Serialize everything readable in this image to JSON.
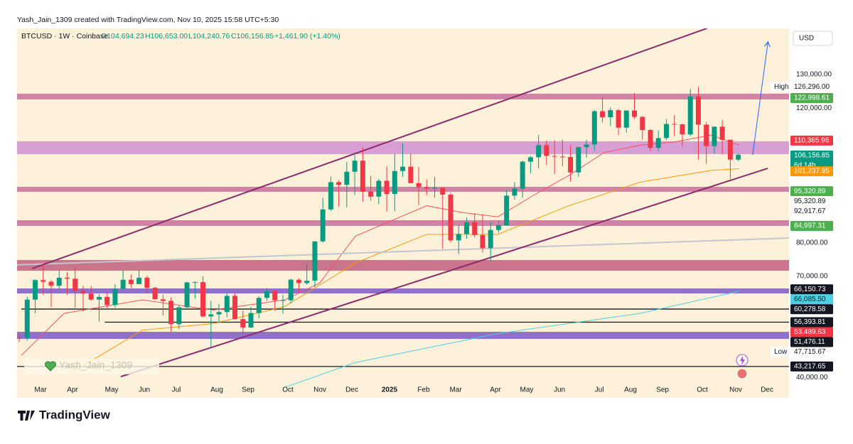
{
  "header": {
    "attribution": "Yash_Jain_1309 created with TradingView.com, Nov 10, 2025 15:58 UTC+5:30",
    "symbol": "BTCUSD · 1W · Coinbase",
    "ohlc_labels": [
      "O104,694.23",
      "H106,653.00",
      "L104,240.76",
      "C106,156.85",
      "+1,461.90 (+1.40%)"
    ],
    "currency": "USD",
    "watermark": "Yash_Jain_1309"
  },
  "footer": {
    "brand": "TradingView"
  },
  "chart_data": {
    "type": "candlestick",
    "open": [
      51800,
      51700,
      63100,
      68900,
      68400,
      67200,
      69600,
      69300,
      65700,
      64900,
      63100,
      63900,
      61500,
      66300,
      69000,
      67700,
      69600,
      66600,
      63200,
      62700,
      55800,
      60800,
      68200,
      68300,
      58100,
      58700,
      59400,
      64200,
      57300,
      54800,
      59100,
      63600,
      65600,
      62900,
      62900,
      69000,
      68000,
      68700,
      80400,
      89900,
      98000,
      97200,
      101100,
      104400,
      95200,
      93700,
      98400,
      94500,
      101300,
      102600,
      97700,
      96500,
      96100,
      96300,
      94300,
      80700,
      82600,
      86100,
      82300,
      78400,
      83800,
      85200,
      94000,
      96100,
      104100,
      105400,
      109000,
      105800,
      105600,
      105500,
      100900,
      108400,
      109200,
      119100,
      117300,
      119400,
      114200,
      119300,
      117400,
      113500,
      108200,
      111100,
      115300,
      115200,
      112200,
      123500,
      115100,
      108700,
      114500,
      110600,
      104694.23
    ],
    "high": [
      52900,
      64000,
      69100,
      73800,
      68900,
      71800,
      71300,
      72800,
      67200,
      67100,
      64700,
      65500,
      67700,
      71900,
      70600,
      71900,
      70200,
      66900,
      64500,
      63800,
      61300,
      68400,
      68500,
      70000,
      62700,
      61800,
      65000,
      64900,
      59800,
      61000,
      64100,
      66500,
      66000,
      64500,
      69400,
      69500,
      73600,
      80400,
      93400,
      99600,
      98600,
      104000,
      106500,
      108400,
      99900,
      99000,
      102700,
      106400,
      109600,
      106500,
      102500,
      98800,
      99500,
      96500,
      95000,
      85300,
      87500,
      88800,
      88500,
      86100,
      86400,
      95700,
      98000,
      104400,
      105800,
      112000,
      110400,
      110500,
      110600,
      108900,
      108500,
      110600,
      119500,
      123200,
      120200,
      119800,
      119300,
      124500,
      117600,
      113800,
      113400,
      116800,
      117900,
      115400,
      125700,
      126300,
      115900,
      114000,
      116400,
      110700,
      106653
    ],
    "low": [
      50500,
      50900,
      59000,
      64500,
      60800,
      66000,
      64500,
      60700,
      59600,
      62800,
      56500,
      60200,
      60700,
      66100,
      66600,
      67700,
      65000,
      63400,
      58400,
      53500,
      54300,
      60600,
      63400,
      57800,
      49000,
      56100,
      57800,
      57200,
      52600,
      54600,
      57500,
      62700,
      59800,
      58900,
      62000,
      65100,
      67500,
      66800,
      80000,
      89400,
      90800,
      90500,
      94200,
      92200,
      92500,
      91500,
      89300,
      89300,
      99500,
      97800,
      91200,
      94100,
      93400,
      78200,
      80000,
      76600,
      81200,
      81600,
      77100,
      74500,
      83000,
      85100,
      92800,
      93400,
      100700,
      102100,
      103100,
      100400,
      102700,
      98200,
      99600,
      105300,
      107500,
      115700,
      114700,
      112000,
      112700,
      116800,
      110600,
      107300,
      107300,
      110600,
      111700,
      108600,
      111600,
      104600,
      103500,
      106600,
      106300,
      98900,
      104240.76
    ],
    "close": [
      51700,
      63100,
      68900,
      68400,
      67200,
      69600,
      69300,
      65700,
      64900,
      63100,
      63900,
      61500,
      66300,
      69000,
      67700,
      69600,
      66600,
      63200,
      62700,
      55800,
      60800,
      68200,
      68300,
      58100,
      58700,
      59400,
      64200,
      57300,
      54800,
      59100,
      63600,
      65600,
      62900,
      62900,
      69000,
      68000,
      68700,
      80400,
      89900,
      98000,
      97200,
      101100,
      104400,
      95200,
      93700,
      98400,
      94500,
      101300,
      102600,
      97700,
      96500,
      96100,
      96300,
      94300,
      80700,
      82600,
      86100,
      82300,
      78400,
      83800,
      85200,
      94000,
      96100,
      104100,
      105400,
      109000,
      105800,
      105600,
      105500,
      100900,
      108400,
      109200,
      119100,
      117300,
      119400,
      114200,
      119300,
      117400,
      113500,
      108200,
      111100,
      115300,
      115200,
      112200,
      123500,
      115100,
      108700,
      114500,
      110600,
      104700,
      106156.85
    ],
    "up_color": "#089981",
    "down_color": "#f23645",
    "xlim": [
      -0.27,
      96.35
    ],
    "xticks": [
      {
        "value": 2.67,
        "label": "Mar"
      },
      {
        "value": 6.67,
        "label": "Apr"
      },
      {
        "value": 11.57,
        "label": "May"
      },
      {
        "value": 15.66,
        "label": "Jun"
      },
      {
        "value": 19.66,
        "label": "Jul"
      },
      {
        "value": 24.73,
        "label": "Aug"
      },
      {
        "value": 28.65,
        "label": "Sep"
      },
      {
        "value": 33.63,
        "label": "Oct"
      },
      {
        "value": 37.63,
        "label": "Nov"
      },
      {
        "value": 41.64,
        "label": "Dec"
      },
      {
        "value": 46.35,
        "label": "2025"
      },
      {
        "value": 50.62,
        "label": "Feb"
      },
      {
        "value": 54.63,
        "label": "Mar"
      },
      {
        "value": 59.61,
        "label": "Apr"
      },
      {
        "value": 63.52,
        "label": "May"
      },
      {
        "value": 67.62,
        "label": "Jun"
      },
      {
        "value": 72.6,
        "label": "Jul"
      },
      {
        "value": 76.51,
        "label": "Aug"
      },
      {
        "value": 80.52,
        "label": "Sep"
      },
      {
        "value": 85.5,
        "label": "Oct"
      },
      {
        "value": 89.68,
        "label": "Nov"
      },
      {
        "value": 93.6,
        "label": "Dec"
      }
    ],
    "ylim": [
      33900,
      143700
    ],
    "yticks": [
      {
        "value": 130000,
        "label": "130,000.00"
      },
      {
        "value": 120000,
        "label": "120,000.00"
      },
      {
        "value": 80000,
        "label": "80,000.00"
      },
      {
        "value": 70000,
        "label": "70,000.00"
      },
      {
        "value": 40000,
        "label": "40,000.00"
      }
    ],
    "grid": false,
    "zones": [
      {
        "from": 122600,
        "to": 124300,
        "color": "#c8709a"
      },
      {
        "from": 106340,
        "to": 110150,
        "color": "#cf8fd0"
      },
      {
        "from": 95140,
        "to": 96620,
        "color": "#c8709a"
      },
      {
        "from": 85000,
        "to": 86690,
        "color": "#c8709a"
      },
      {
        "from": 71690,
        "to": 74860,
        "color": "#c0607f"
      },
      {
        "from": 64930,
        "to": 66410,
        "color": "#7b5cc4"
      },
      {
        "from": 51410,
        "to": 53520,
        "color": "#7b5cc4"
      }
    ],
    "levels": [
      {
        "value": 60278.58,
        "from": 0.27
      },
      {
        "value": 56393.81,
        "from": 10.7
      },
      {
        "value": 43217.65,
        "from": -0.27
      }
    ],
    "lines": [
      {
        "color": "#f7525f",
        "width": 1,
        "x": [
          0.27,
          5.6,
          15.4,
          24.3,
          33.2,
          37.6,
          42.1,
          51,
          55.4,
          59.9,
          64.3,
          68.8,
          73.2,
          77.7,
          82.1,
          86.6,
          90.1
        ],
        "values": [
          46500,
          59000,
          63000,
          60000,
          63000,
          68000,
          82000,
          91000,
          89000,
          87700,
          94000,
          100000,
          106800,
          109000,
          110000,
          112000,
          109000
        ]
      },
      {
        "color": "#ff9800",
        "width": 1,
        "x": [
          6.5,
          15.4,
          24.3,
          33.2,
          42.1,
          51,
          59.9,
          68.8,
          77.7,
          86.6,
          90.1
        ],
        "values": [
          41300,
          54000,
          56000,
          61000,
          74000,
          82500,
          82500,
          91000,
          98000,
          101500,
          102000
        ]
      },
      {
        "color": "#4dd0e1",
        "width": 1,
        "x": [
          33.2,
          42.1,
          59.9,
          77.7,
          90.1
        ],
        "values": [
          37000,
          44400,
          53000,
          59000,
          65600
        ]
      },
      {
        "color": "#c3c6d0",
        "width": 2,
        "x": [
          -0.27,
          96.35
        ],
        "values": [
          73400,
          81400
        ]
      },
      {
        "color": "#8e2a6e",
        "width": 2,
        "x": [
          1.6,
          86.1
        ],
        "values": [
          72326,
          143740
        ]
      },
      {
        "color": "#8e2a6e",
        "width": 2,
        "x": [
          12.72,
          93.7
        ],
        "values": [
          40211,
          102117
        ]
      },
      {
        "color": "#2962ff",
        "width": 1,
        "arrow": true,
        "x": [
          91.8,
          93.7
        ],
        "values": [
          106130,
          139500
        ]
      }
    ],
    "price_labels": [
      {
        "value": 126296,
        "label": "126,296.00",
        "tag": "High",
        "bg": "#ffffff",
        "fg": "#131722"
      },
      {
        "value": 122998.61,
        "label": "122,998.61",
        "bg": "#4caf50",
        "fg": "#ffffff"
      },
      {
        "value": 110365.96,
        "label": "110,365.96",
        "bg": "#f23645",
        "fg": "#ffffff"
      },
      {
        "value": 106156.85,
        "label": "106,156.85",
        "sub": "6d 14h",
        "bg": "#089981",
        "fg": "#ffffff"
      },
      {
        "value": 101237.95,
        "label": "101,237.95",
        "bg": "#ff9800",
        "fg": "#ffffff"
      },
      {
        "value": 95320.89,
        "label": "95,320.89",
        "bg": "#4caf50",
        "fg": "#ffffff"
      },
      {
        "value": 95320.89,
        "label": "95,320.89",
        "bg": "#ffffff",
        "fg": "#131722"
      },
      {
        "value": 92917.67,
        "label": "92,917.67",
        "bg": "#ffffff",
        "fg": "#131722"
      },
      {
        "value": 84997.31,
        "label": "84,997.31",
        "bg": "#4caf50",
        "fg": "#ffffff"
      },
      {
        "value": 66150.73,
        "label": "66,150.73",
        "bg": "#131722",
        "fg": "#ffffff"
      },
      {
        "value": 66085.5,
        "label": "66,085.50",
        "bg": "#4dd0e1",
        "fg": "#131722"
      },
      {
        "value": 60278.58,
        "label": "60,278.58",
        "bg": "#131722",
        "fg": "#ffffff"
      },
      {
        "value": 56393.81,
        "label": "56,393.81",
        "bg": "#131722",
        "fg": "#ffffff"
      },
      {
        "value": 53489.63,
        "label": "53,489.63",
        "bg": "#f23645",
        "fg": "#ffffff"
      },
      {
        "value": 51476.11,
        "label": "51,476.11",
        "bg": "#131722",
        "fg": "#ffffff"
      },
      {
        "value": 47715.67,
        "label": "47,715.67",
        "tag": "Low",
        "bg": "#ffffff",
        "fg": "#131722"
      },
      {
        "value": 43217.65,
        "label": "43,217.65",
        "bg": "#131722",
        "fg": "#ffffff"
      }
    ]
  }
}
